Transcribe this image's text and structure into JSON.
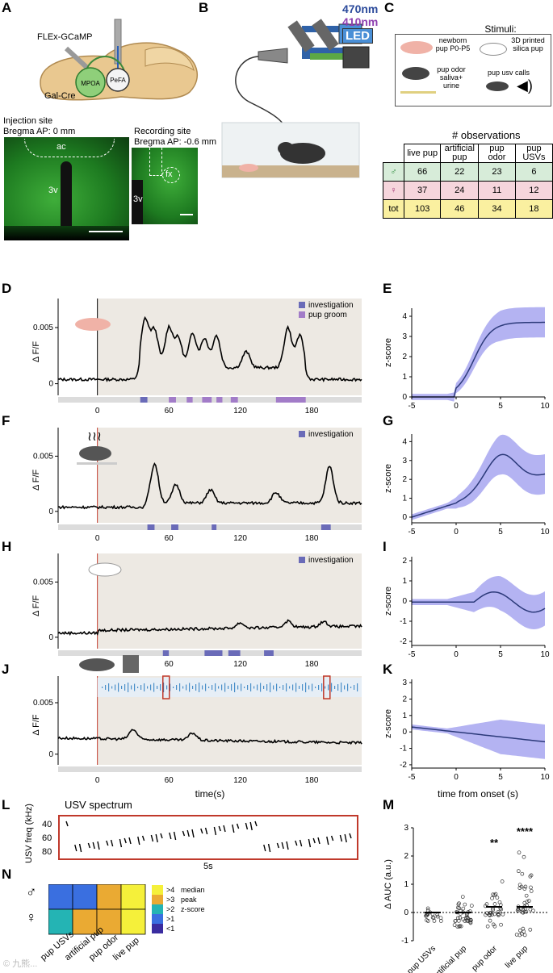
{
  "panels": {
    "A": "A",
    "B": "B",
    "C": "C",
    "D": "D",
    "E": "E",
    "F": "F",
    "G": "G",
    "H": "H",
    "I": "I",
    "J": "J",
    "K": "K",
    "L": "L",
    "M": "M",
    "N": "N"
  },
  "panelA": {
    "virus_label": "FLEx-GCaMP",
    "mouse_label": "Gal-Cre",
    "region1": "MPOA",
    "region2": "PeFA",
    "injection_title": "Injection site",
    "injection_coord": "Bregma AP: 0 mm",
    "recording_title": "Recording site",
    "recording_coord": "Bregma AP: -0.6 mm",
    "inj_tag_ac": "ac",
    "inj_tag_3v": "3v",
    "rec_tag_fx": "fx",
    "rec_tag_3v": "3v"
  },
  "panelB": {
    "wl1": "470nm",
    "wl2": "410nm",
    "led": "LED",
    "colors": {
      "wl1": "#2b4a9b",
      "wl2": "#8e3fb0",
      "led": "#4a8fd6"
    }
  },
  "panelC": {
    "title": "Stimuli:",
    "stimuli": [
      {
        "text": "newborn pup P0-P5",
        "icon": "pup-icon"
      },
      {
        "text": "3D printed silica pup",
        "icon": "silica-pup-icon"
      },
      {
        "text": "pup odor saliva+ urine",
        "icon": "odor-icon"
      },
      {
        "text": "pup usv calls",
        "icon": "speaker-icon"
      }
    ],
    "table_title": "# observations",
    "headers": [
      "live pup",
      "artificial pup",
      "pup odor",
      "pup USVs"
    ],
    "rows": [
      {
        "label": "♂",
        "values": [
          "66",
          "22",
          "23",
          "6"
        ],
        "color": "#d7ecd9"
      },
      {
        "label": "♀",
        "values": [
          "37",
          "24",
          "11",
          "12"
        ],
        "color": "#f6d5dc"
      },
      {
        "label": "tot",
        "values": [
          "103",
          "46",
          "34",
          "18"
        ],
        "color": "#faf0a0"
      }
    ]
  },
  "traces": {
    "ylabel": "Δ F/F",
    "ytick_top": "0.005",
    "ytick_bottom": "0",
    "xticks": [
      "0",
      "60",
      "120",
      "180"
    ],
    "xlabel": "time(s)",
    "legend_investigation": "investigation",
    "legend_pupgroom": "pup groom",
    "colors": {
      "investigation": "#6a6bb8",
      "pup_groom": "#a27cc8",
      "shade": "#ede9e3"
    }
  },
  "zscore": {
    "ylabel": "z-score",
    "xticks": [
      "-5",
      "0",
      "5",
      "10"
    ],
    "xlabel": "time from onset (s)",
    "E_yticks": [
      "0",
      "1",
      "2",
      "3",
      "4"
    ],
    "G_yticks": [
      "0",
      "1",
      "2",
      "3",
      "4"
    ],
    "I_yticks": [
      "-2",
      "-1",
      "0",
      "1",
      "2"
    ],
    "K_yticks": [
      "-2",
      "-1",
      "0",
      "1",
      "2",
      "3"
    ]
  },
  "panelL": {
    "title": "USV spectrum",
    "ylabel": "USV freq (kHz)",
    "yticks": [
      "40",
      "60",
      "80"
    ],
    "scale": "5s"
  },
  "panelM": {
    "ylabel": "Δ AUC (a.u.)",
    "yticks": [
      "-1",
      "0",
      "1",
      "2",
      "3"
    ],
    "categories": [
      "pup USVs",
      "artificial pup",
      "pup odor",
      "live pup"
    ],
    "significance": [
      "",
      "",
      "**",
      "****"
    ]
  },
  "panelN": {
    "rows": [
      "♂",
      "♀"
    ],
    "columns": [
      "pup USVs",
      "artificial pup",
      "pup odor",
      "live pup"
    ],
    "legend": [
      ">4",
      ">3",
      ">2",
      ">1",
      "<1"
    ],
    "legend_title": [
      "median",
      "peak",
      "z-score"
    ],
    "legend_colors": [
      "#f5f03a",
      "#eaaa33",
      "#24b4b4",
      "#3a6fe0",
      "#3a2ca0"
    ],
    "cells": [
      [
        "#3a6fe0",
        "#3a6fe0",
        "#eaaa33",
        "#f5f03a"
      ],
      [
        "#24b4b4",
        "#eaaa33",
        "#eaaa33",
        "#f5f03a"
      ]
    ]
  },
  "watermark": "© 九熊..."
}
